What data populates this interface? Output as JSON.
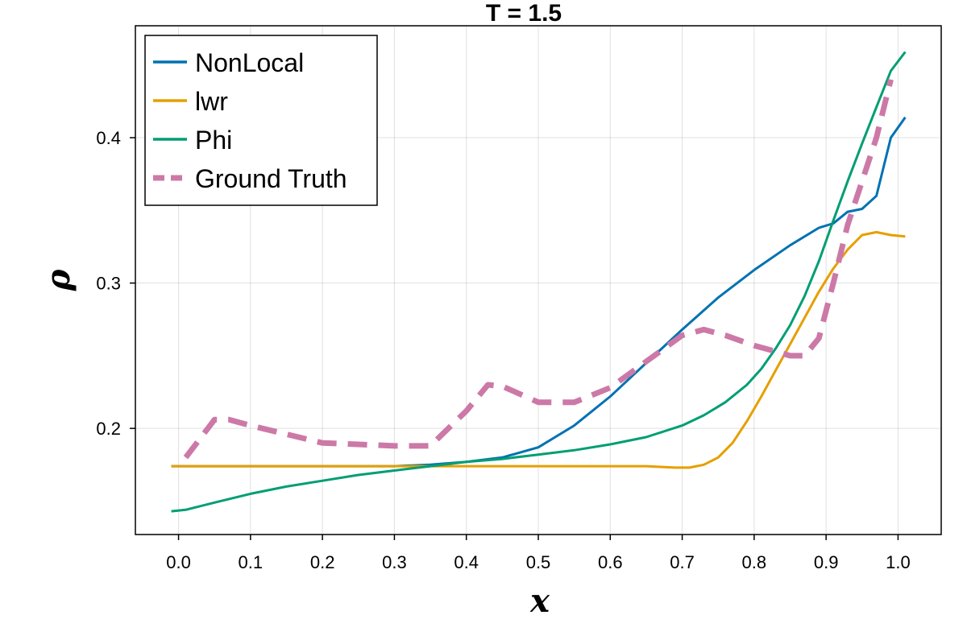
{
  "chart_data": {
    "type": "line",
    "title": "T = 1.5",
    "xlabel": "x",
    "ylabel": "ρ",
    "xlim": [
      -0.06,
      1.06
    ],
    "ylim": [
      0.127,
      0.477
    ],
    "xticks": [
      0.0,
      0.1,
      0.2,
      0.3,
      0.4,
      0.5,
      0.6,
      0.7,
      0.8,
      0.9,
      1.0
    ],
    "xtick_labels": [
      "0.0",
      "0.1",
      "0.2",
      "0.3",
      "0.4",
      "0.5",
      "0.6",
      "0.7",
      "0.8",
      "0.9",
      "1.0"
    ],
    "yticks": [
      0.2,
      0.3,
      0.4
    ],
    "ytick_labels": [
      "0.2",
      "0.3",
      "0.4"
    ],
    "grid": true,
    "legend_position": "top-left",
    "series": [
      {
        "name": "NonLocal",
        "color": "#0072b2",
        "style": "solid",
        "x": [
          -0.01,
          0.1,
          0.2,
          0.3,
          0.35,
          0.4,
          0.45,
          0.5,
          0.55,
          0.6,
          0.65,
          0.7,
          0.75,
          0.8,
          0.85,
          0.89,
          0.91,
          0.93,
          0.95,
          0.97,
          0.99,
          1.01
        ],
        "y": [
          0.174,
          0.174,
          0.174,
          0.174,
          0.175,
          0.177,
          0.18,
          0.187,
          0.202,
          0.222,
          0.245,
          0.268,
          0.29,
          0.309,
          0.326,
          0.338,
          0.341,
          0.349,
          0.351,
          0.36,
          0.4,
          0.414
        ]
      },
      {
        "name": "lwr",
        "color": "#e69f00",
        "style": "solid",
        "x": [
          -0.01,
          0.1,
          0.2,
          0.3,
          0.4,
          0.5,
          0.6,
          0.65,
          0.69,
          0.71,
          0.73,
          0.75,
          0.77,
          0.79,
          0.81,
          0.83,
          0.85,
          0.87,
          0.89,
          0.91,
          0.93,
          0.95,
          0.97,
          0.99,
          1.01
        ],
        "y": [
          0.174,
          0.174,
          0.174,
          0.174,
          0.174,
          0.174,
          0.174,
          0.174,
          0.173,
          0.173,
          0.175,
          0.18,
          0.19,
          0.205,
          0.222,
          0.24,
          0.258,
          0.276,
          0.294,
          0.31,
          0.323,
          0.333,
          0.335,
          0.333,
          0.332
        ]
      },
      {
        "name": "Phi",
        "color": "#009e73",
        "style": "solid",
        "x": [
          -0.01,
          0.01,
          0.05,
          0.1,
          0.15,
          0.2,
          0.25,
          0.3,
          0.35,
          0.4,
          0.45,
          0.5,
          0.55,
          0.6,
          0.65,
          0.7,
          0.73,
          0.76,
          0.79,
          0.81,
          0.83,
          0.85,
          0.87,
          0.89,
          0.91,
          0.93,
          0.95,
          0.97,
          0.99,
          1.01
        ],
        "y": [
          0.143,
          0.144,
          0.149,
          0.155,
          0.16,
          0.164,
          0.168,
          0.171,
          0.174,
          0.177,
          0.179,
          0.182,
          0.185,
          0.189,
          0.194,
          0.202,
          0.209,
          0.218,
          0.23,
          0.241,
          0.255,
          0.271,
          0.291,
          0.315,
          0.343,
          0.37,
          0.396,
          0.421,
          0.446,
          0.459
        ]
      },
      {
        "name": "Ground Truth",
        "color": "#cc79a7",
        "style": "dashed",
        "x": [
          0.01,
          0.05,
          0.07,
          0.1,
          0.15,
          0.2,
          0.25,
          0.3,
          0.35,
          0.4,
          0.43,
          0.45,
          0.5,
          0.55,
          0.6,
          0.65,
          0.7,
          0.73,
          0.76,
          0.8,
          0.83,
          0.85,
          0.87,
          0.89,
          0.91,
          0.93,
          0.95,
          0.97,
          0.99
        ],
        "y": [
          0.18,
          0.206,
          0.206,
          0.202,
          0.196,
          0.19,
          0.189,
          0.188,
          0.188,
          0.212,
          0.23,
          0.229,
          0.218,
          0.218,
          0.228,
          0.246,
          0.264,
          0.268,
          0.264,
          0.257,
          0.253,
          0.25,
          0.25,
          0.262,
          0.3,
          0.34,
          0.37,
          0.4,
          0.44
        ]
      }
    ]
  }
}
